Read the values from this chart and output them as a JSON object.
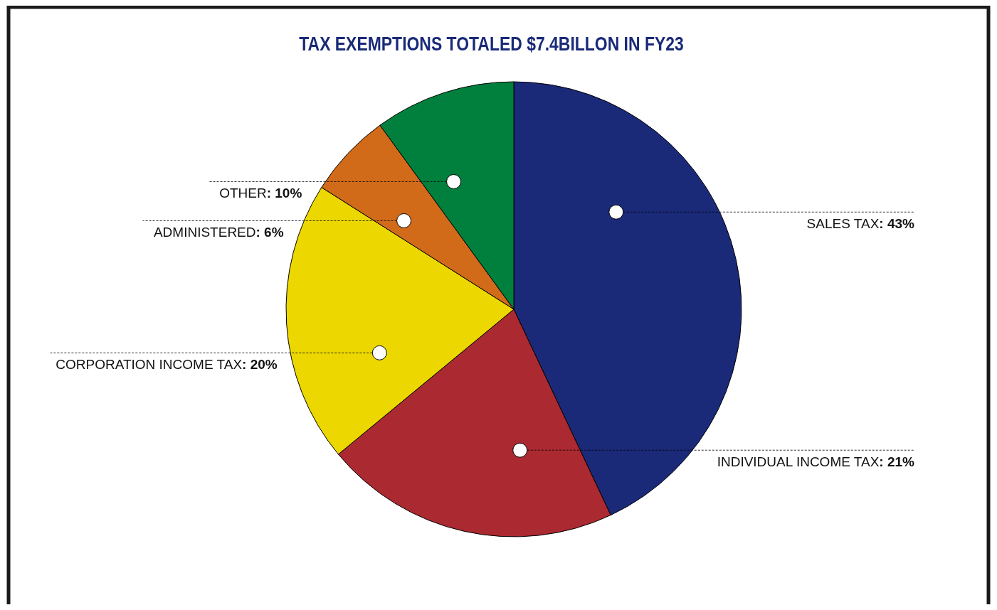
{
  "chart_data": {
    "type": "pie",
    "title": "TAX EXEMPTIONS TOTALED $7.4BILLON IN FY23",
    "categories": [
      "SALES TAX",
      "INDIVIDUAL INCOME TAX",
      "CORPORATION INCOME TAX",
      "ADMINISTERED",
      "OTHER"
    ],
    "values": [
      43,
      21,
      20,
      6,
      10
    ],
    "value_labels": [
      ": 43%",
      ": 21%",
      ": 20%",
      ": 6%",
      ": 10%"
    ],
    "colors": [
      "#1a2a78",
      "#ab2930",
      "#ecd800",
      "#d16b1a",
      "#007f3d"
    ]
  }
}
